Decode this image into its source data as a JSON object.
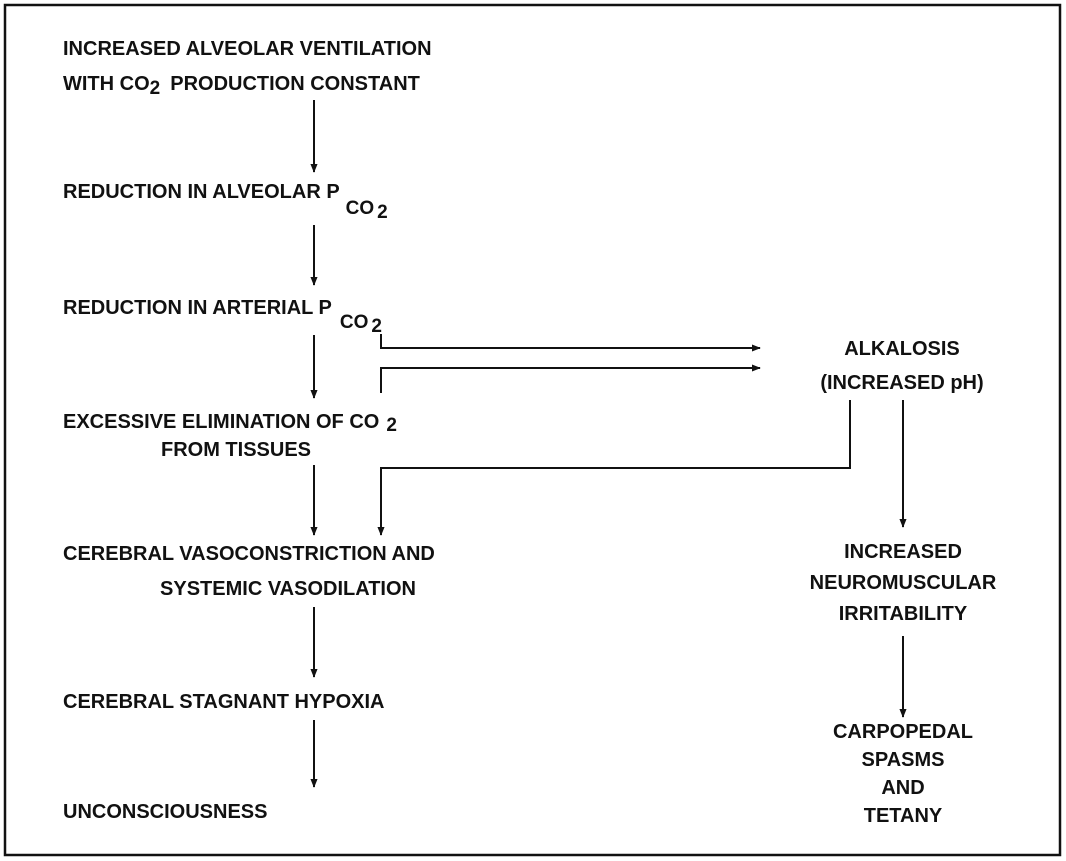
{
  "nodes": [
    {
      "lines": [
        [
          "INCREASED ALVEOLAR VENTILATION"
        ],
        [
          "WITH CO",
          "2",
          "PRODUCTION CONSTANT"
        ]
      ]
    },
    {
      "lines": [
        [
          "REDUCTION IN ALVEOLAR P",
          "CO",
          "2"
        ]
      ]
    },
    {
      "lines": [
        [
          "REDUCTION IN ARTERIAL P",
          "CO",
          "2"
        ]
      ]
    },
    {
      "lines": [
        [
          "EXCESSIVE ELIMINATION OF CO",
          "2"
        ],
        [
          "FROM TISSUES"
        ]
      ]
    },
    {
      "lines": [
        [
          "CEREBRAL VASOCONSTRICTION AND"
        ],
        [
          "SYSTEMIC VASODILATION"
        ]
      ]
    },
    {
      "lines": [
        [
          "CEREBRAL STAGNANT HYPOXIA"
        ]
      ]
    },
    {
      "lines": [
        [
          "UNCONSCIOUSNESS"
        ]
      ]
    },
    {
      "lines": [
        [
          "ALKALOSIS"
        ],
        [
          "(INCREASED pH)"
        ]
      ]
    },
    {
      "lines": [
        [
          "INCREASED"
        ],
        [
          "NEUROMUSCULAR"
        ],
        [
          "IRRITABILITY"
        ]
      ]
    },
    {
      "lines": [
        [
          "CARPOPEDAL"
        ],
        [
          "SPASMS"
        ],
        [
          "AND"
        ],
        [
          "TETANY"
        ]
      ]
    }
  ]
}
